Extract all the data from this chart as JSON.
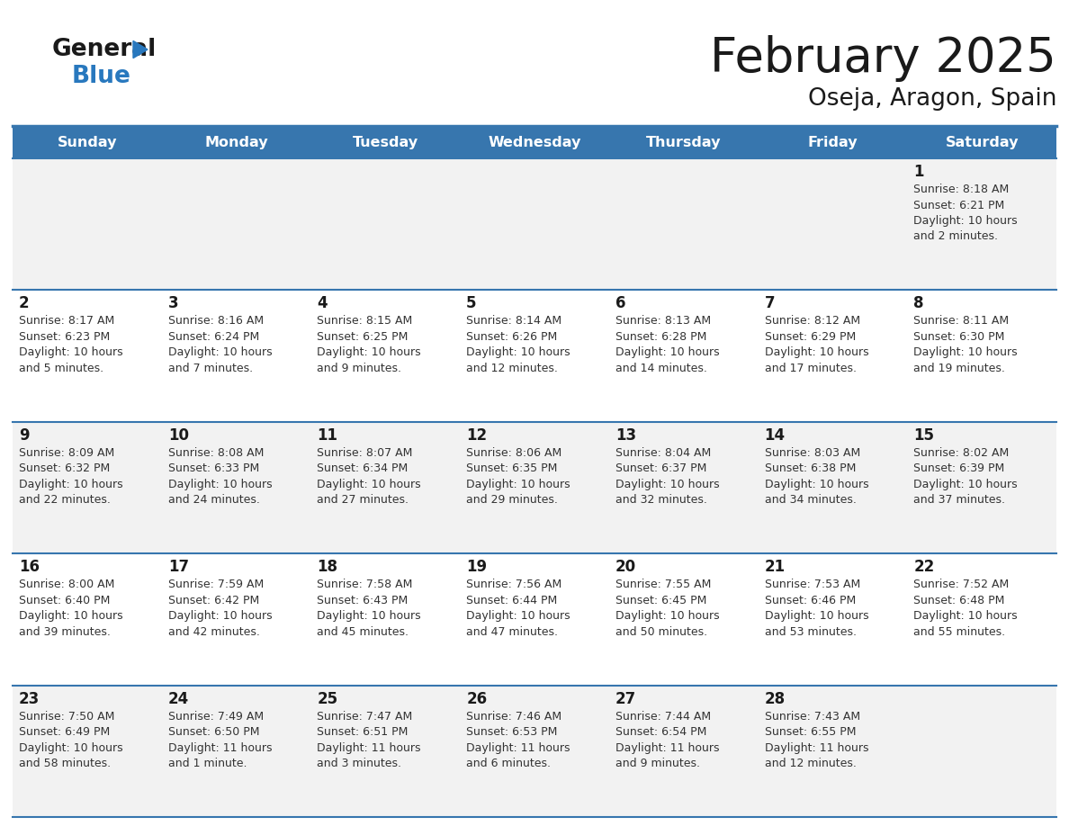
{
  "title": "February 2025",
  "subtitle": "Oseja, Aragon, Spain",
  "header_color": "#3776ae",
  "header_text_color": "#ffffff",
  "day_names": [
    "Sunday",
    "Monday",
    "Tuesday",
    "Wednesday",
    "Thursday",
    "Friday",
    "Saturday"
  ],
  "title_color": "#1a1a1a",
  "subtitle_color": "#1a1a1a",
  "cell_bg_even": "#f2f2f2",
  "cell_bg_odd": "#ffffff",
  "border_color": "#3776ae",
  "day_num_color": "#1a1a1a",
  "info_color": "#333333",
  "logo_general_color": "#1a1a1a",
  "logo_blue_color": "#2878be",
  "days": [
    {
      "date": 1,
      "col": 6,
      "row": 0,
      "sunrise": "8:18 AM",
      "sunset": "6:21 PM",
      "daylight": "10 hours and 2 minutes"
    },
    {
      "date": 2,
      "col": 0,
      "row": 1,
      "sunrise": "8:17 AM",
      "sunset": "6:23 PM",
      "daylight": "10 hours and 5 minutes"
    },
    {
      "date": 3,
      "col": 1,
      "row": 1,
      "sunrise": "8:16 AM",
      "sunset": "6:24 PM",
      "daylight": "10 hours and 7 minutes"
    },
    {
      "date": 4,
      "col": 2,
      "row": 1,
      "sunrise": "8:15 AM",
      "sunset": "6:25 PM",
      "daylight": "10 hours and 9 minutes"
    },
    {
      "date": 5,
      "col": 3,
      "row": 1,
      "sunrise": "8:14 AM",
      "sunset": "6:26 PM",
      "daylight": "10 hours and 12 minutes"
    },
    {
      "date": 6,
      "col": 4,
      "row": 1,
      "sunrise": "8:13 AM",
      "sunset": "6:28 PM",
      "daylight": "10 hours and 14 minutes"
    },
    {
      "date": 7,
      "col": 5,
      "row": 1,
      "sunrise": "8:12 AM",
      "sunset": "6:29 PM",
      "daylight": "10 hours and 17 minutes"
    },
    {
      "date": 8,
      "col": 6,
      "row": 1,
      "sunrise": "8:11 AM",
      "sunset": "6:30 PM",
      "daylight": "10 hours and 19 minutes"
    },
    {
      "date": 9,
      "col": 0,
      "row": 2,
      "sunrise": "8:09 AM",
      "sunset": "6:32 PM",
      "daylight": "10 hours and 22 minutes"
    },
    {
      "date": 10,
      "col": 1,
      "row": 2,
      "sunrise": "8:08 AM",
      "sunset": "6:33 PM",
      "daylight": "10 hours and 24 minutes"
    },
    {
      "date": 11,
      "col": 2,
      "row": 2,
      "sunrise": "8:07 AM",
      "sunset": "6:34 PM",
      "daylight": "10 hours and 27 minutes"
    },
    {
      "date": 12,
      "col": 3,
      "row": 2,
      "sunrise": "8:06 AM",
      "sunset": "6:35 PM",
      "daylight": "10 hours and 29 minutes"
    },
    {
      "date": 13,
      "col": 4,
      "row": 2,
      "sunrise": "8:04 AM",
      "sunset": "6:37 PM",
      "daylight": "10 hours and 32 minutes"
    },
    {
      "date": 14,
      "col": 5,
      "row": 2,
      "sunrise": "8:03 AM",
      "sunset": "6:38 PM",
      "daylight": "10 hours and 34 minutes"
    },
    {
      "date": 15,
      "col": 6,
      "row": 2,
      "sunrise": "8:02 AM",
      "sunset": "6:39 PM",
      "daylight": "10 hours and 37 minutes"
    },
    {
      "date": 16,
      "col": 0,
      "row": 3,
      "sunrise": "8:00 AM",
      "sunset": "6:40 PM",
      "daylight": "10 hours and 39 minutes"
    },
    {
      "date": 17,
      "col": 1,
      "row": 3,
      "sunrise": "7:59 AM",
      "sunset": "6:42 PM",
      "daylight": "10 hours and 42 minutes"
    },
    {
      "date": 18,
      "col": 2,
      "row": 3,
      "sunrise": "7:58 AM",
      "sunset": "6:43 PM",
      "daylight": "10 hours and 45 minutes"
    },
    {
      "date": 19,
      "col": 3,
      "row": 3,
      "sunrise": "7:56 AM",
      "sunset": "6:44 PM",
      "daylight": "10 hours and 47 minutes"
    },
    {
      "date": 20,
      "col": 4,
      "row": 3,
      "sunrise": "7:55 AM",
      "sunset": "6:45 PM",
      "daylight": "10 hours and 50 minutes"
    },
    {
      "date": 21,
      "col": 5,
      "row": 3,
      "sunrise": "7:53 AM",
      "sunset": "6:46 PM",
      "daylight": "10 hours and 53 minutes"
    },
    {
      "date": 22,
      "col": 6,
      "row": 3,
      "sunrise": "7:52 AM",
      "sunset": "6:48 PM",
      "daylight": "10 hours and 55 minutes"
    },
    {
      "date": 23,
      "col": 0,
      "row": 4,
      "sunrise": "7:50 AM",
      "sunset": "6:49 PM",
      "daylight": "10 hours and 58 minutes"
    },
    {
      "date": 24,
      "col": 1,
      "row": 4,
      "sunrise": "7:49 AM",
      "sunset": "6:50 PM",
      "daylight": "11 hours and 1 minute"
    },
    {
      "date": 25,
      "col": 2,
      "row": 4,
      "sunrise": "7:47 AM",
      "sunset": "6:51 PM",
      "daylight": "11 hours and 3 minutes"
    },
    {
      "date": 26,
      "col": 3,
      "row": 4,
      "sunrise": "7:46 AM",
      "sunset": "6:53 PM",
      "daylight": "11 hours and 6 minutes"
    },
    {
      "date": 27,
      "col": 4,
      "row": 4,
      "sunrise": "7:44 AM",
      "sunset": "6:54 PM",
      "daylight": "11 hours and 9 minutes"
    },
    {
      "date": 28,
      "col": 5,
      "row": 4,
      "sunrise": "7:43 AM",
      "sunset": "6:55 PM",
      "daylight": "11 hours and 12 minutes"
    }
  ]
}
